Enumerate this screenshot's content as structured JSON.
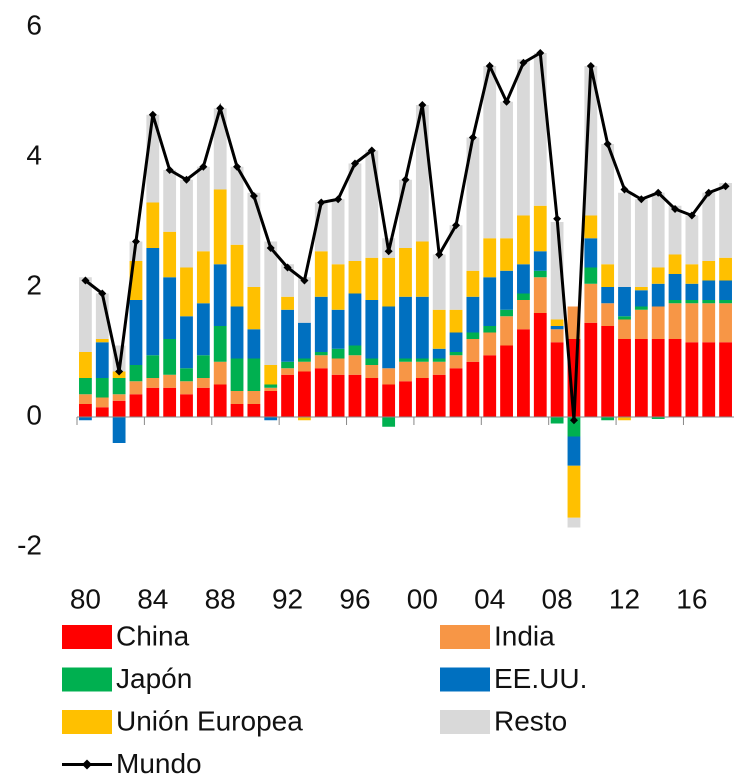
{
  "chart_data": {
    "type": "bar",
    "categories": [
      "80",
      null,
      null,
      null,
      "84",
      null,
      null,
      null,
      "88",
      null,
      null,
      null,
      "92",
      null,
      null,
      null,
      "96",
      null,
      null,
      null,
      "00",
      null,
      null,
      null,
      "04",
      null,
      null,
      null,
      "08",
      null,
      null,
      null,
      "12",
      null,
      null,
      null,
      "16",
      null,
      null
    ],
    "series": [
      {
        "name": "China",
        "color": "#ff0000",
        "values": [
          0.2,
          0.15,
          0.25,
          0.35,
          0.45,
          0.45,
          0.35,
          0.45,
          0.5,
          0.2,
          0.2,
          0.4,
          0.65,
          0.7,
          0.75,
          0.65,
          0.65,
          0.6,
          0.5,
          0.55,
          0.6,
          0.65,
          0.75,
          0.85,
          0.95,
          1.1,
          1.35,
          1.6,
          1.15,
          1.2,
          1.45,
          1.4,
          1.2,
          1.2,
          1.2,
          1.2,
          1.15,
          1.15,
          1.15
        ]
      },
      {
        "name": "India",
        "color": "#f79646",
        "values": [
          0.15,
          0.15,
          0.1,
          0.2,
          0.15,
          0.2,
          0.2,
          0.15,
          0.35,
          0.2,
          0.2,
          0.05,
          0.1,
          0.15,
          0.2,
          0.25,
          0.3,
          0.2,
          0.25,
          0.3,
          0.25,
          0.2,
          0.2,
          0.35,
          0.35,
          0.45,
          0.45,
          0.55,
          0.2,
          0.5,
          0.6,
          0.35,
          0.3,
          0.45,
          0.5,
          0.55,
          0.6,
          0.6,
          0.6
        ]
      },
      {
        "name": "Japón",
        "color": "#00b050",
        "values": [
          0.25,
          0.3,
          0.25,
          0.25,
          0.35,
          0.55,
          0.2,
          0.35,
          0.55,
          0.5,
          0.5,
          0.05,
          0.1,
          0.05,
          0.05,
          0.15,
          0.15,
          0.1,
          -0.15,
          0.05,
          0.05,
          0.05,
          0.05,
          0.1,
          0.1,
          0.1,
          0.1,
          0.1,
          -0.1,
          -0.3,
          0.25,
          -0.05,
          0.05,
          0.05,
          -0.03,
          0.05,
          0.05,
          0.05,
          0.05
        ]
      },
      {
        "name": "EE.UU.",
        "color": "#0070c0",
        "values": [
          -0.05,
          0.55,
          -0.4,
          1.0,
          1.65,
          0.95,
          0.8,
          0.8,
          0.95,
          0.8,
          0.45,
          -0.05,
          0.8,
          0.55,
          0.85,
          0.6,
          0.8,
          0.9,
          0.95,
          0.95,
          0.95,
          0.15,
          0.3,
          0.55,
          0.75,
          0.6,
          0.45,
          0.3,
          0.05,
          -0.45,
          0.45,
          0.25,
          0.45,
          0.25,
          0.35,
          0.4,
          0.25,
          0.3,
          0.3
        ]
      },
      {
        "name": "Unión Europea",
        "color": "#ffc000",
        "values": [
          0.4,
          0.05,
          0.1,
          0.6,
          0.7,
          0.7,
          0.75,
          0.8,
          1.15,
          0.95,
          0.65,
          0.3,
          0.2,
          -0.05,
          0.7,
          0.7,
          0.5,
          0.65,
          0.75,
          0.75,
          0.85,
          0.6,
          0.35,
          0.4,
          0.6,
          0.5,
          0.75,
          0.7,
          0.1,
          -0.8,
          0.35,
          0.35,
          -0.05,
          0.05,
          0.25,
          0.3,
          0.3,
          0.3,
          0.35
        ]
      },
      {
        "name": "Resto",
        "color": "#d9d9d9",
        "values": [
          1.15,
          0.7,
          0.4,
          0.3,
          1.35,
          0.95,
          1.35,
          1.3,
          1.25,
          1.2,
          1.45,
          1.9,
          0.5,
          0.7,
          0.75,
          1.0,
          1.5,
          1.65,
          0.3,
          1.05,
          2.1,
          0.85,
          1.3,
          2.05,
          2.65,
          2.1,
          2.4,
          2.35,
          1.5,
          -0.15,
          2.3,
          1.85,
          1.45,
          1.35,
          1.15,
          0.75,
          0.75,
          1.05,
          1.15
        ]
      },
      {
        "name": "Mundo",
        "type": "line",
        "color": "#000000",
        "values": [
          2.1,
          1.9,
          0.7,
          2.7,
          4.65,
          3.8,
          3.65,
          3.85,
          4.75,
          3.85,
          3.4,
          2.6,
          2.3,
          2.1,
          3.3,
          3.35,
          3.9,
          4.1,
          2.55,
          3.65,
          4.8,
          2.5,
          2.95,
          4.3,
          5.4,
          4.85,
          5.45,
          5.6,
          3.05,
          -0.05,
          5.4,
          4.2,
          3.5,
          3.35,
          3.45,
          3.2,
          3.1,
          3.45,
          3.55
        ]
      }
    ],
    "ylim": [
      -2,
      6
    ],
    "yticks": [
      -2,
      0,
      2,
      4,
      6
    ]
  }
}
